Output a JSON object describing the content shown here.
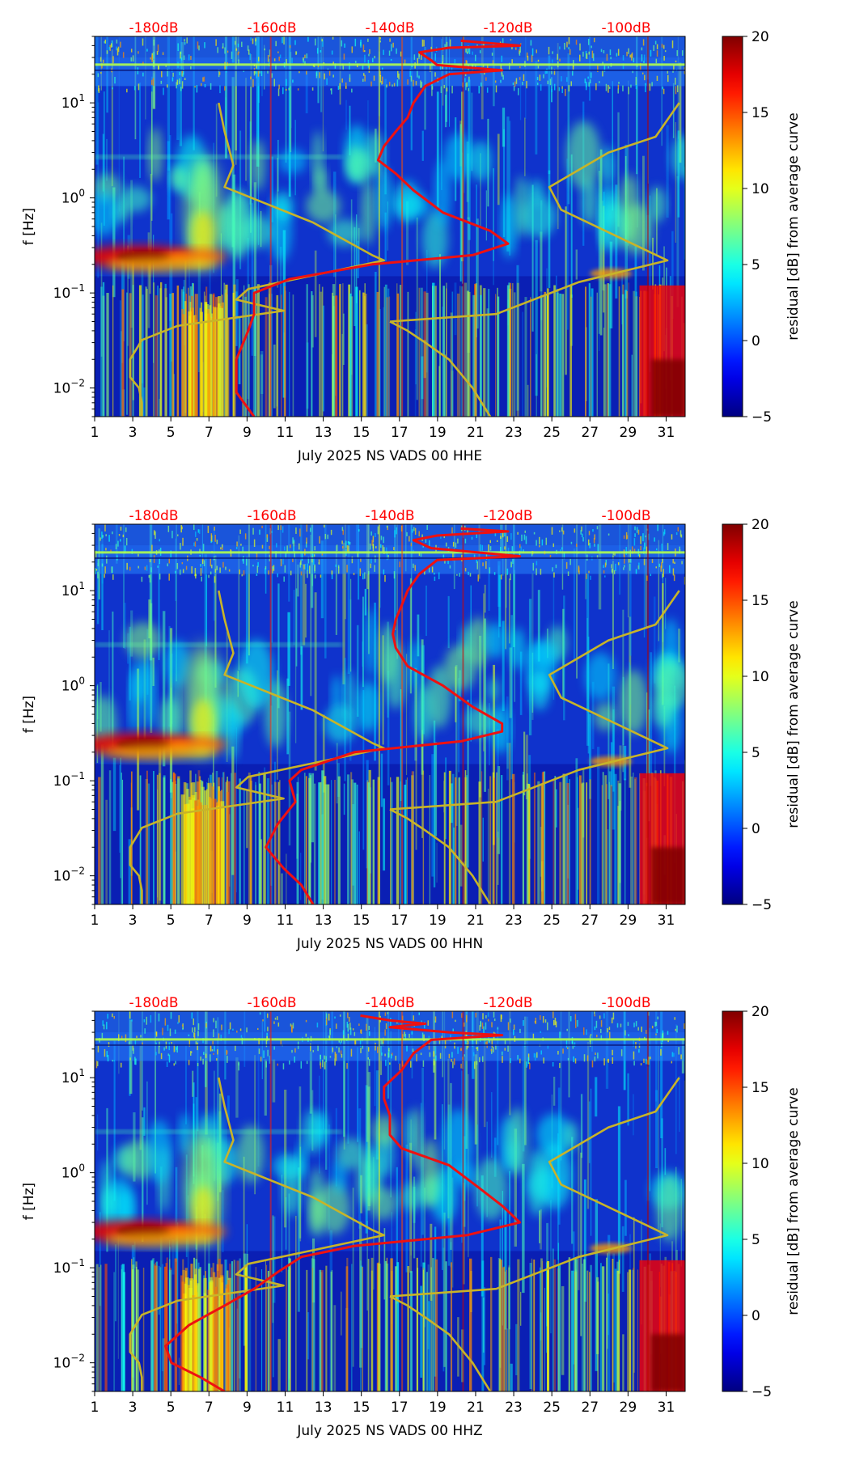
{
  "chart_data": [
    {
      "type": "heatmap",
      "title": "",
      "xlabel": "July 2025 NS VADS 00 HHE",
      "ylabel": "f [Hz]",
      "x_ticks": [
        "1",
        "3",
        "5",
        "7",
        "9",
        "11",
        "13",
        "15",
        "17",
        "19",
        "21",
        "23",
        "25",
        "27",
        "29",
        "31"
      ],
      "xlim": [
        1,
        32
      ],
      "y_ticks": [
        {
          "value": 0.01,
          "base": "10",
          "exp": "−2"
        },
        {
          "value": 0.1,
          "base": "10",
          "exp": "−1"
        },
        {
          "value": 1,
          "base": "10",
          "exp": "0"
        },
        {
          "value": 10,
          "base": "10",
          "exp": "1"
        }
      ],
      "ylim_hz": [
        0.005,
        50
      ],
      "db_labels": [
        "-180dB",
        "-160dB",
        "-140dB",
        "-120dB",
        "-100dB"
      ],
      "db_range": [
        -190,
        -90
      ],
      "colorbar": {
        "label": "residual [dB] from average curve",
        "ticks": [
          "20",
          "15",
          "10",
          "5",
          "0",
          "−5"
        ],
        "range": [
          -5,
          20
        ]
      },
      "series": [
        {
          "name": "noise-model-bounds",
          "color": "#c8b428",
          "points": [
            [
              -169,
              10
            ],
            [
              -168,
              5
            ],
            [
              -166.5,
              2.2
            ],
            [
              -168,
              1.3
            ],
            [
              -153,
              0.55
            ],
            [
              -143,
              0.25
            ],
            [
              -141,
              0.22
            ],
            [
              -164,
              0.11
            ],
            [
              -166,
              0.085
            ],
            [
              -158,
              0.065
            ],
            [
              -176,
              0.045
            ],
            [
              -182,
              0.032
            ],
            [
              -184,
              0.02
            ],
            [
              -184,
              0.013
            ],
            [
              -182.5,
              0.01
            ],
            [
              -182,
              0.007
            ],
            [
              -182,
              0.005
            ]
          ]
        },
        {
          "name": "noise-model-bounds-high",
          "color": "#c8b428",
          "points": [
            [
              -140,
              0.05
            ],
            [
              -137,
              0.04
            ],
            [
              -134,
              0.03
            ],
            [
              -130,
              0.02
            ],
            [
              -126,
              0.01
            ],
            [
              -123,
              0.005
            ]
          ]
        },
        {
          "name": "noise-model-bounds-high-upper",
          "color": "#c8b428",
          "points": [
            [
              -140,
              0.05
            ],
            [
              -122,
              0.06
            ],
            [
              -108,
              0.13
            ],
            [
              -93,
              0.22
            ],
            [
              -111,
              0.75
            ],
            [
              -113,
              1.3
            ],
            [
              -103,
              3
            ],
            [
              -95,
              4.4
            ],
            [
              -91,
              10
            ]
          ]
        },
        {
          "name": "median-psd",
          "color": "#ee1111",
          "points": [
            [
              -128,
              45
            ],
            [
              -118,
              40
            ],
            [
              -130,
              38
            ],
            [
              -135,
              34
            ],
            [
              -133,
              28
            ],
            [
              -132,
              25
            ],
            [
              -121,
              22
            ],
            [
              -130,
              20
            ],
            [
              -134,
              15
            ],
            [
              -136,
              10
            ],
            [
              -137,
              7
            ],
            [
              -139,
              5
            ],
            [
              -141,
              3.5
            ],
            [
              -142,
              2.5
            ],
            [
              -139,
              1.8
            ],
            [
              -136,
              1.2
            ],
            [
              -131,
              0.7
            ],
            [
              -123,
              0.45
            ],
            [
              -120,
              0.33
            ],
            [
              -126,
              0.25
            ],
            [
              -143,
              0.2
            ],
            [
              -157,
              0.14
            ],
            [
              -163,
              0.1
            ],
            [
              -163,
              0.06
            ],
            [
              -164,
              0.04
            ],
            [
              -166,
              0.02
            ],
            [
              -166,
              0.012
            ],
            [
              -166,
              0.009
            ],
            [
              -163,
              0.005
            ]
          ]
        }
      ]
    },
    {
      "type": "heatmap",
      "title": "",
      "xlabel": "July 2025 NS VADS 00 HHN",
      "ylabel": "f [Hz]",
      "x_ticks": [
        "1",
        "3",
        "5",
        "7",
        "9",
        "11",
        "13",
        "15",
        "17",
        "19",
        "21",
        "23",
        "25",
        "27",
        "29",
        "31"
      ],
      "xlim": [
        1,
        32
      ],
      "y_ticks": [
        {
          "value": 0.01,
          "base": "10",
          "exp": "−2"
        },
        {
          "value": 0.1,
          "base": "10",
          "exp": "−1"
        },
        {
          "value": 1,
          "base": "10",
          "exp": "0"
        },
        {
          "value": 10,
          "base": "10",
          "exp": "1"
        }
      ],
      "ylim_hz": [
        0.005,
        50
      ],
      "db_labels": [
        "-180dB",
        "-160dB",
        "-140dB",
        "-120dB",
        "-100dB"
      ],
      "db_range": [
        -190,
        -90
      ],
      "colorbar": {
        "label": "residual [dB] from average curve",
        "ticks": [
          "20",
          "15",
          "10",
          "5",
          "0",
          "−5"
        ],
        "range": [
          -5,
          20
        ]
      },
      "series": [
        {
          "name": "noise-model-bounds",
          "color": "#c8b428",
          "points": [
            [
              -169,
              10
            ],
            [
              -168,
              5
            ],
            [
              -166.5,
              2.2
            ],
            [
              -168,
              1.3
            ],
            [
              -153,
              0.55
            ],
            [
              -143,
              0.25
            ],
            [
              -141,
              0.22
            ],
            [
              -164,
              0.11
            ],
            [
              -166,
              0.085
            ],
            [
              -158,
              0.065
            ],
            [
              -176,
              0.045
            ],
            [
              -182,
              0.032
            ],
            [
              -184,
              0.02
            ],
            [
              -184,
              0.013
            ],
            [
              -182.5,
              0.01
            ],
            [
              -182,
              0.007
            ],
            [
              -182,
              0.005
            ]
          ]
        },
        {
          "name": "noise-model-bounds-high",
          "color": "#c8b428",
          "points": [
            [
              -140,
              0.05
            ],
            [
              -137,
              0.04
            ],
            [
              -134,
              0.03
            ],
            [
              -130,
              0.02
            ],
            [
              -126,
              0.01
            ],
            [
              -123,
              0.005
            ]
          ]
        },
        {
          "name": "noise-model-bounds-high-upper",
          "color": "#c8b428",
          "points": [
            [
              -140,
              0.05
            ],
            [
              -122,
              0.06
            ],
            [
              -108,
              0.13
            ],
            [
              -93,
              0.22
            ],
            [
              -111,
              0.75
            ],
            [
              -113,
              1.3
            ],
            [
              -103,
              3
            ],
            [
              -95,
              4.4
            ],
            [
              -91,
              10
            ]
          ]
        },
        {
          "name": "median-psd",
          "color": "#ee1111",
          "points": [
            [
              -128,
              45
            ],
            [
              -120,
              42
            ],
            [
              -132,
              38
            ],
            [
              -136,
              34
            ],
            [
              -133,
              28
            ],
            [
              -118,
              23
            ],
            [
              -132,
              21
            ],
            [
              -135,
              15
            ],
            [
              -137,
              10
            ],
            [
              -138,
              7
            ],
            [
              -139,
              5
            ],
            [
              -139.5,
              3.5
            ],
            [
              -139,
              2.5
            ],
            [
              -137,
              1.6
            ],
            [
              -131,
              1.0
            ],
            [
              -126,
              0.6
            ],
            [
              -121,
              0.4
            ],
            [
              -121,
              0.33
            ],
            [
              -128,
              0.26
            ],
            [
              -146,
              0.2
            ],
            [
              -155,
              0.13
            ],
            [
              -157,
              0.1
            ],
            [
              -156,
              0.06
            ],
            [
              -159,
              0.035
            ],
            [
              -161,
              0.02
            ],
            [
              -158,
              0.012
            ],
            [
              -155,
              0.008
            ],
            [
              -153,
              0.005
            ]
          ]
        }
      ]
    },
    {
      "type": "heatmap",
      "title": "",
      "xlabel": "July 2025 NS VADS 00 HHZ",
      "ylabel": "f [Hz]",
      "x_ticks": [
        "1",
        "3",
        "5",
        "7",
        "9",
        "11",
        "13",
        "15",
        "17",
        "19",
        "21",
        "23",
        "25",
        "27",
        "29",
        "31"
      ],
      "xlim": [
        1,
        32
      ],
      "y_ticks": [
        {
          "value": 0.01,
          "base": "10",
          "exp": "−2"
        },
        {
          "value": 0.1,
          "base": "10",
          "exp": "−1"
        },
        {
          "value": 1,
          "base": "10",
          "exp": "0"
        },
        {
          "value": 10,
          "base": "10",
          "exp": "1"
        }
      ],
      "ylim_hz": [
        0.005,
        50
      ],
      "db_labels": [
        "-180dB",
        "-160dB",
        "-140dB",
        "-120dB",
        "-100dB"
      ],
      "db_range": [
        -190,
        -90
      ],
      "colorbar": {
        "label": "residual [dB] from average curve",
        "ticks": [
          "20",
          "15",
          "10",
          "5",
          "0",
          "−5"
        ],
        "range": [
          -5,
          20
        ]
      },
      "series": [
        {
          "name": "noise-model-bounds",
          "color": "#c8b428",
          "points": [
            [
              -169,
              10
            ],
            [
              -168,
              5
            ],
            [
              -166.5,
              2.2
            ],
            [
              -168,
              1.3
            ],
            [
              -153,
              0.55
            ],
            [
              -143,
              0.25
            ],
            [
              -141,
              0.22
            ],
            [
              -164,
              0.11
            ],
            [
              -166,
              0.085
            ],
            [
              -158,
              0.065
            ],
            [
              -176,
              0.045
            ],
            [
              -182,
              0.032
            ],
            [
              -184,
              0.02
            ],
            [
              -184,
              0.013
            ],
            [
              -182.5,
              0.01
            ],
            [
              -182,
              0.007
            ],
            [
              -182,
              0.005
            ]
          ]
        },
        {
          "name": "noise-model-bounds-high",
          "color": "#c8b428",
          "points": [
            [
              -140,
              0.05
            ],
            [
              -137,
              0.04
            ],
            [
              -134,
              0.03
            ],
            [
              -130,
              0.02
            ],
            [
              -126,
              0.01
            ],
            [
              -123,
              0.005
            ]
          ]
        },
        {
          "name": "noise-model-bounds-high-upper",
          "color": "#c8b428",
          "points": [
            [
              -140,
              0.05
            ],
            [
              -122,
              0.06
            ],
            [
              -108,
              0.13
            ],
            [
              -93,
              0.22
            ],
            [
              -111,
              0.75
            ],
            [
              -113,
              1.3
            ],
            [
              -103,
              3
            ],
            [
              -95,
              4.4
            ],
            [
              -91,
              10
            ]
          ]
        },
        {
          "name": "median-psd",
          "color": "#ee1111",
          "points": [
            [
              -145,
              45
            ],
            [
              -140,
              40
            ],
            [
              -134,
              37
            ],
            [
              -140,
              34
            ],
            [
              -130,
              30
            ],
            [
              -121,
              28
            ],
            [
              -133,
              25
            ],
            [
              -136,
              18
            ],
            [
              -138,
              12
            ],
            [
              -141,
              8
            ],
            [
              -141,
              6
            ],
            [
              -140,
              4
            ],
            [
              -140,
              2.5
            ],
            [
              -138,
              1.8
            ],
            [
              -130,
              1.2
            ],
            [
              -125,
              0.7
            ],
            [
              -121,
              0.45
            ],
            [
              -118,
              0.3
            ],
            [
              -127,
              0.22
            ],
            [
              -146,
              0.17
            ],
            [
              -155,
              0.13
            ],
            [
              -159,
              0.09
            ],
            [
              -163,
              0.06
            ],
            [
              -168,
              0.04
            ],
            [
              -174,
              0.025
            ],
            [
              -178,
              0.015
            ],
            [
              -177,
              0.01
            ],
            [
              -172,
              0.007
            ],
            [
              -168,
              0.005
            ]
          ]
        }
      ]
    }
  ]
}
